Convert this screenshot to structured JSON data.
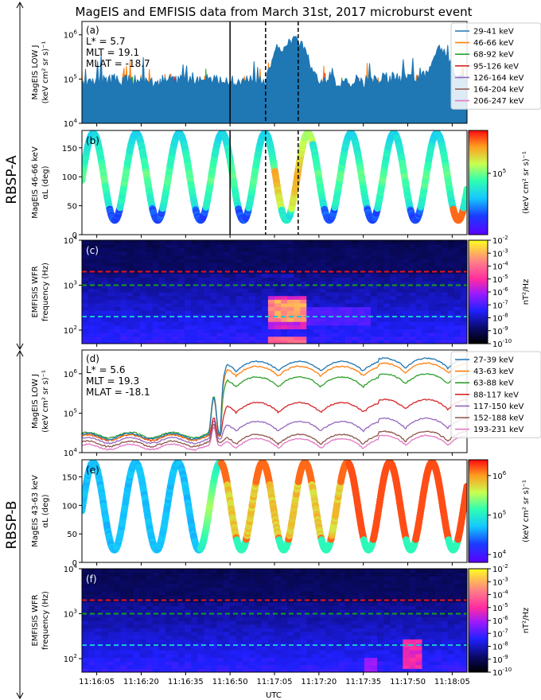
{
  "title": "MagEIS and EMFISIS data from March 31st, 2017 microburst event",
  "side_labels": {
    "a": "RBSP-A",
    "b": "RBSP-B"
  },
  "xaxis": {
    "label": "UTC",
    "ticks": [
      "11:16:05",
      "11:16:20",
      "11:16:35",
      "11:16:50",
      "11:17:05",
      "11:17:20",
      "11:17:35",
      "11:17:50",
      "11:18:05"
    ],
    "tick_seconds": [
      5,
      20,
      35,
      50,
      65,
      80,
      95,
      110,
      125
    ],
    "range_seconds": [
      0,
      130
    ]
  },
  "colors": {
    "A": [
      "#1f77b4",
      "#ff7f0e",
      "#2ca02c",
      "#d62728",
      "#9467bd",
      "#8c564b",
      "#e377c2"
    ],
    "ref_lines": {
      "red": "#e8131b",
      "green": "#16a016",
      "cyan": "#18c6d6"
    }
  },
  "chart_data": [
    {
      "panel": "a",
      "type": "line",
      "yscale": "log",
      "ylim": [
        10000,
        2000000
      ],
      "ylabel_lines": [
        "MagEIS LOW J",
        "(keV cm² sr s)⁻¹"
      ],
      "yticks": [
        {
          "exp": 4
        },
        {
          "exp": 5
        },
        {
          "exp": 6
        }
      ],
      "annotations": [
        "(a)",
        "L* = 5.7",
        "MLT = 19.1",
        "MLAT = -18.7"
      ],
      "vlines": [
        {
          "x_sec": 50,
          "style": "solid"
        },
        {
          "x_sec": 62,
          "style": "dashed"
        },
        {
          "x_sec": 73,
          "style": "dashed"
        }
      ],
      "series": [
        {
          "name": "29-41 keV",
          "base": 90000,
          "burst": 900000
        },
        {
          "name": "46-66 keV",
          "base": 55000,
          "burst": 450000
        },
        {
          "name": "68-92 keV",
          "base": 38000,
          "burst": 180000
        },
        {
          "name": "95-126 keV",
          "base": 30000,
          "burst": 60000
        },
        {
          "name": "126-164 keV",
          "base": 22000,
          "burst": 40000
        },
        {
          "name": "164-204 keV",
          "base": 17000,
          "burst": 26000
        },
        {
          "name": "206-247 keV",
          "base": 13000,
          "burst": 18000
        }
      ]
    },
    {
      "panel": "b",
      "type": "scatter",
      "ylim": [
        0,
        180
      ],
      "ylabel_lines": [
        "MagEIS 46-66 keV",
        "αL (deg)"
      ],
      "yticks": [
        0,
        50,
        100,
        150
      ],
      "annotations": [
        "(b)"
      ],
      "vlines": [
        {
          "x_sec": 50,
          "style": "solid"
        },
        {
          "x_sec": 62,
          "style": "dashed"
        },
        {
          "x_sec": 73,
          "style": "dashed"
        }
      ],
      "pitch": {
        "min": 25,
        "max": 175,
        "period_sec": 14.5
      },
      "colorbar": {
        "label": "(keV cm² sr s)⁻¹",
        "ticks": [
          {
            "exp": 5
          }
        ],
        "log_range": [
          4.0,
          5.7
        ]
      }
    },
    {
      "panel": "c",
      "type": "heatmap",
      "yscale": "log",
      "ylim": [
        50,
        10000
      ],
      "ylabel_lines": [
        "EMFISIS WFR",
        "frequency (Hz)"
      ],
      "yticks": [
        {
          "exp": 2
        },
        {
          "exp": 3
        },
        {
          "exp": 4
        }
      ],
      "annotations": [
        "(c)"
      ],
      "hlines_hz": [
        {
          "value": 2000,
          "color": "red"
        },
        {
          "value": 1000,
          "color": "green"
        },
        {
          "value": 200,
          "color": "cyan"
        }
      ],
      "colorbar": {
        "label": "nT²/Hz",
        "ticks": [
          {
            "exp": -2
          },
          {
            "exp": -3
          },
          {
            "exp": -4
          },
          {
            "exp": -5
          },
          {
            "exp": -6
          },
          {
            "exp": -7
          },
          {
            "exp": -8
          },
          {
            "exp": -9
          },
          {
            "exp": -10
          }
        ]
      }
    },
    {
      "panel": "d",
      "type": "line",
      "yscale": "log",
      "ylim": [
        10000,
        4000000
      ],
      "ylabel_lines": [
        "MagEIS LOW J",
        "(keV cm² sr s)⁻¹"
      ],
      "yticks": [
        {
          "exp": 4
        },
        {
          "exp": 5
        },
        {
          "exp": 6
        }
      ],
      "annotations": [
        "(d)",
        "L* = 5.6",
        "MLT = 19.3",
        "MLAT = -18.1"
      ],
      "series": [
        {
          "name": "27-39 keV",
          "base": 28000,
          "after": 2000000
        },
        {
          "name": "43-63 keV",
          "base": 26000,
          "after": 1500000
        },
        {
          "name": "63-88 keV",
          "base": 30000,
          "after": 800000
        },
        {
          "name": "88-117 keV",
          "base": 26000,
          "after": 180000
        },
        {
          "name": "117-150 keV",
          "base": 22000,
          "after": 60000
        },
        {
          "name": "152-188 keV",
          "base": 18000,
          "after": 28000
        },
        {
          "name": "193-231 keV",
          "base": 15000,
          "after": 22000
        }
      ]
    },
    {
      "panel": "e",
      "type": "scatter",
      "ylim": [
        0,
        180
      ],
      "ylabel_lines": [
        "MagEIS 43-63 keV",
        "αL (deg)"
      ],
      "yticks": [
        0,
        50,
        100,
        150
      ],
      "annotations": [
        "(e)"
      ],
      "pitch": {
        "min": 22,
        "max": 175,
        "period_sec": 14.3
      },
      "colorbar": {
        "label": "(keV cm² sr s)⁻¹",
        "ticks": [
          {
            "exp": 4
          },
          {
            "exp": 5
          },
          {
            "exp": 6
          }
        ],
        "log_range": [
          3.8,
          6.4
        ]
      }
    },
    {
      "panel": "f",
      "type": "heatmap",
      "yscale": "log",
      "ylim": [
        50,
        10000
      ],
      "ylabel_lines": [
        "EMFISIS WFR",
        "frequency (Hz)"
      ],
      "yticks": [
        {
          "exp": 2
        },
        {
          "exp": 3
        },
        {
          "exp": 4
        }
      ],
      "annotations": [
        "(f)"
      ],
      "hlines_hz": [
        {
          "value": 2000,
          "color": "red"
        },
        {
          "value": 1000,
          "color": "green"
        },
        {
          "value": 200,
          "color": "cyan"
        }
      ],
      "colorbar": {
        "label": "nT²/Hz",
        "ticks": [
          {
            "exp": -2
          },
          {
            "exp": -3
          },
          {
            "exp": -4
          },
          {
            "exp": -5
          },
          {
            "exp": -6
          },
          {
            "exp": -7
          },
          {
            "exp": -8
          },
          {
            "exp": -9
          },
          {
            "exp": -10
          }
        ]
      }
    }
  ]
}
